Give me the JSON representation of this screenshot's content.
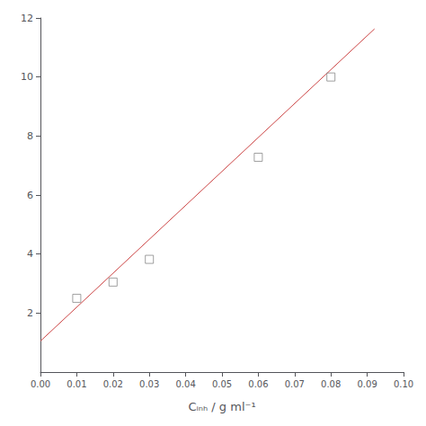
{
  "chart_data": {
    "type": "scatter",
    "x_label": "Cᵢₙₕ / g ml⁻¹",
    "series": [
      {
        "type": "scatter",
        "marker": "square",
        "color": "#888888",
        "x": [
          0.01,
          0.02,
          0.03,
          0.06,
          0.08
        ],
        "values": [
          2.5,
          3.05,
          3.82,
          7.28,
          10.0
        ]
      },
      {
        "type": "line",
        "line_style": "solid",
        "color": "#cc4444",
        "x": [
          0.0,
          0.092
        ],
        "values": [
          1.05,
          11.63
        ]
      }
    ],
    "xlim": [
      0.0,
      0.1
    ],
    "xticks": [
      {
        "value": 0.0,
        "label": "0.00"
      },
      0.01,
      0.02,
      0.03,
      0.04,
      0.05,
      0.06,
      0.07,
      0.08,
      0.09,
      {
        "value": 0.1,
        "label": "0.10"
      }
    ],
    "ylim": [
      0,
      12
    ],
    "yticks": [
      2,
      4,
      6,
      8,
      10,
      12
    ],
    "grid": false
  }
}
